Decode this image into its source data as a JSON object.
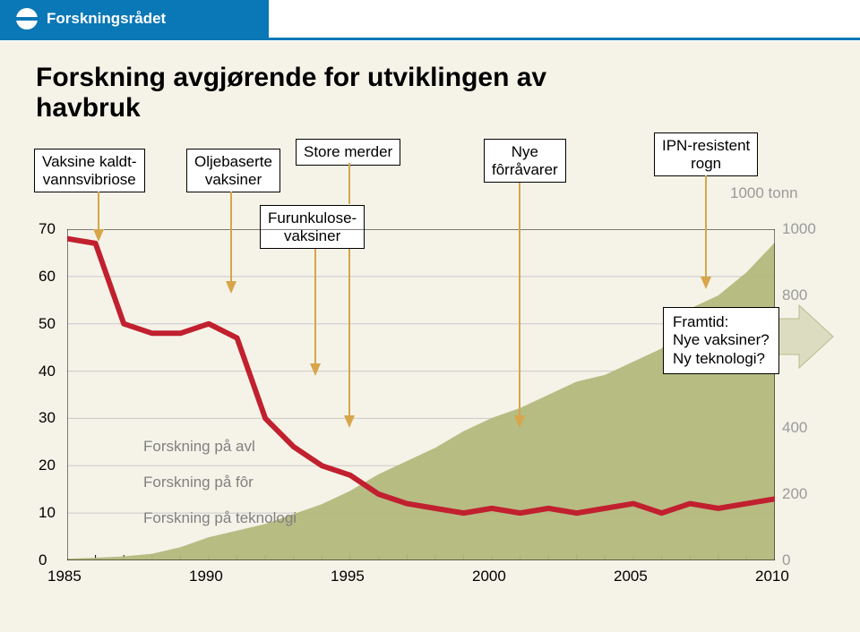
{
  "brand": {
    "name": "Forskningsrådet"
  },
  "title": "Forskning avgjørende for utviklingen av\nhavbruk",
  "unitLabel": "1000 tonn",
  "annotations": {
    "vaksine": {
      "text": "Vaksine kaldt-\nvannsvibriose"
    },
    "olje": {
      "text": "Oljebaserte\nvaksiner"
    },
    "store": {
      "text": "Store merder"
    },
    "furunk": {
      "text": "Furunkulose-\nvaksiner"
    },
    "nye": {
      "text": "Nye\nfôrråvarer"
    },
    "ipn": {
      "text": "IPN-resistent\nrogn"
    }
  },
  "leftAxis": {
    "min": 0,
    "max": 70,
    "step": 10,
    "ticks": [
      0,
      10,
      20,
      30,
      40,
      50,
      60,
      70
    ]
  },
  "rightAxis": {
    "ticks": [
      0,
      200,
      400,
      800,
      1000
    ],
    "max": 1000
  },
  "xAxis": {
    "min": 1985,
    "max": 2010,
    "step": 5,
    "ticks": [
      1985,
      1990,
      1995,
      2000,
      2005,
      2010
    ]
  },
  "research": {
    "avl": "Forskning på avl",
    "for": "Forskning på fôr",
    "tek": "Forskning på teknologi"
  },
  "future": {
    "l1": "Framtid:",
    "l2": "Nye vaksiner?",
    "l3": "Ny teknologi?"
  },
  "colors": {
    "area": "#b3b87d",
    "redLine": "#c1202f",
    "arrow": "#d7a54a",
    "grid": "#c9c9c9",
    "bigArrowFill": "#dcdcc0",
    "bigArrowStroke": "#b9bb8e",
    "rightTick": "#9a9a9a"
  },
  "areaSeries": [
    [
      1985,
      5
    ],
    [
      1986,
      8
    ],
    [
      1987,
      12
    ],
    [
      1988,
      20
    ],
    [
      1989,
      40
    ],
    [
      1990,
      70
    ],
    [
      1991,
      90
    ],
    [
      1992,
      110
    ],
    [
      1993,
      140
    ],
    [
      1994,
      170
    ],
    [
      1995,
      210
    ],
    [
      1996,
      260
    ],
    [
      1997,
      300
    ],
    [
      1998,
      340
    ],
    [
      1999,
      390
    ],
    [
      2000,
      430
    ],
    [
      2001,
      460
    ],
    [
      2002,
      500
    ],
    [
      2003,
      540
    ],
    [
      2004,
      560
    ],
    [
      2005,
      600
    ],
    [
      2006,
      640
    ],
    [
      2007,
      760
    ],
    [
      2008,
      800
    ],
    [
      2009,
      870
    ],
    [
      2010,
      960
    ]
  ],
  "redSeries": [
    [
      1985,
      68
    ],
    [
      1986,
      67
    ],
    [
      1987,
      50
    ],
    [
      1988,
      48
    ],
    [
      1989,
      48
    ],
    [
      1990,
      50
    ],
    [
      1991,
      47
    ],
    [
      1992,
      30
    ],
    [
      1993,
      24
    ],
    [
      1994,
      20
    ],
    [
      1995,
      18
    ],
    [
      1996,
      14
    ],
    [
      1997,
      12
    ],
    [
      1998,
      11
    ],
    [
      1999,
      10
    ],
    [
      2000,
      11
    ],
    [
      2001,
      10
    ],
    [
      2002,
      11
    ],
    [
      2003,
      10
    ],
    [
      2004,
      11
    ],
    [
      2005,
      12
    ],
    [
      2006,
      10
    ],
    [
      2007,
      12
    ],
    [
      2008,
      11
    ],
    [
      2009,
      12
    ],
    [
      2010,
      13
    ]
  ]
}
